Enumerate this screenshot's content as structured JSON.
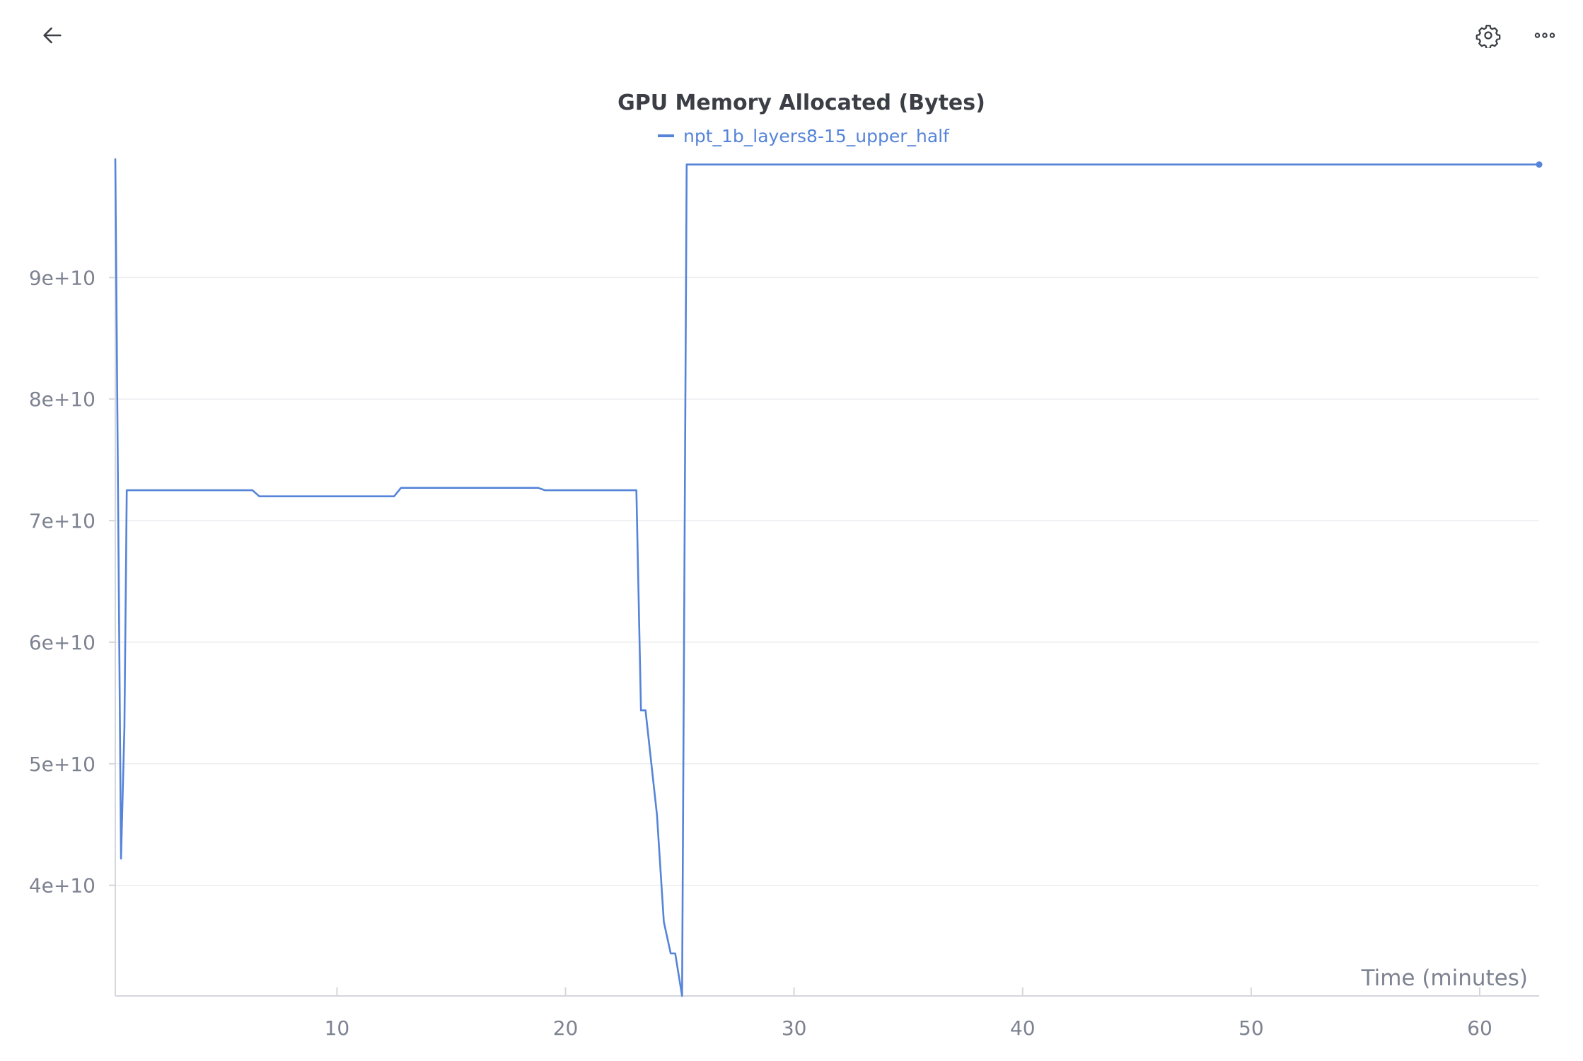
{
  "toolbar": {
    "back_icon": "arrow-left-icon",
    "settings_icon": "gear-icon",
    "more_icon": "more-dots-icon"
  },
  "colors": {
    "series": "#5584d8",
    "grid": "#ecedf0",
    "axis": "#d5d7dc",
    "tick_text": "#7d8291",
    "title_text": "#3b3e45"
  },
  "chart_data": {
    "type": "line",
    "title": "GPU Memory Allocated (Bytes)",
    "xlabel": "Time (minutes)",
    "ylabel": "",
    "xlim": [
      0.3,
      62.6
    ],
    "ylim": [
      30900000000,
      99800000000
    ],
    "x_ticks": [
      10,
      20,
      30,
      40,
      50,
      60
    ],
    "x_tick_labels": [
      "10",
      "20",
      "30",
      "40",
      "50",
      "60"
    ],
    "y_ticks": [
      40000000000,
      50000000000,
      60000000000,
      70000000000,
      80000000000,
      90000000000
    ],
    "y_tick_labels": [
      "4e+10",
      "5e+10",
      "6e+10",
      "7e+10",
      "8e+10",
      "9e+10"
    ],
    "grid": true,
    "legend_position": "top-center",
    "series": [
      {
        "name": "npt_1b_layers8-15_upper_half",
        "color": "#5584d8",
        "end_marker": true,
        "x": [
          0.3,
          0.55,
          0.7,
          0.8,
          6.3,
          6.6,
          12.5,
          12.8,
          18.8,
          19.1,
          23.1,
          23.3,
          23.5,
          24.0,
          24.3,
          24.6,
          24.8,
          25.1,
          25.3,
          62.6
        ],
        "y": [
          99800000000,
          42200000000,
          53000000000,
          72500000000,
          72500000000,
          72000000000,
          72000000000,
          72700000000,
          72700000000,
          72500000000,
          72500000000,
          54400000000,
          54400000000,
          45800000000,
          37000000000,
          34400000000,
          34400000000,
          30900000000,
          99300000000,
          99300000000
        ]
      }
    ]
  }
}
